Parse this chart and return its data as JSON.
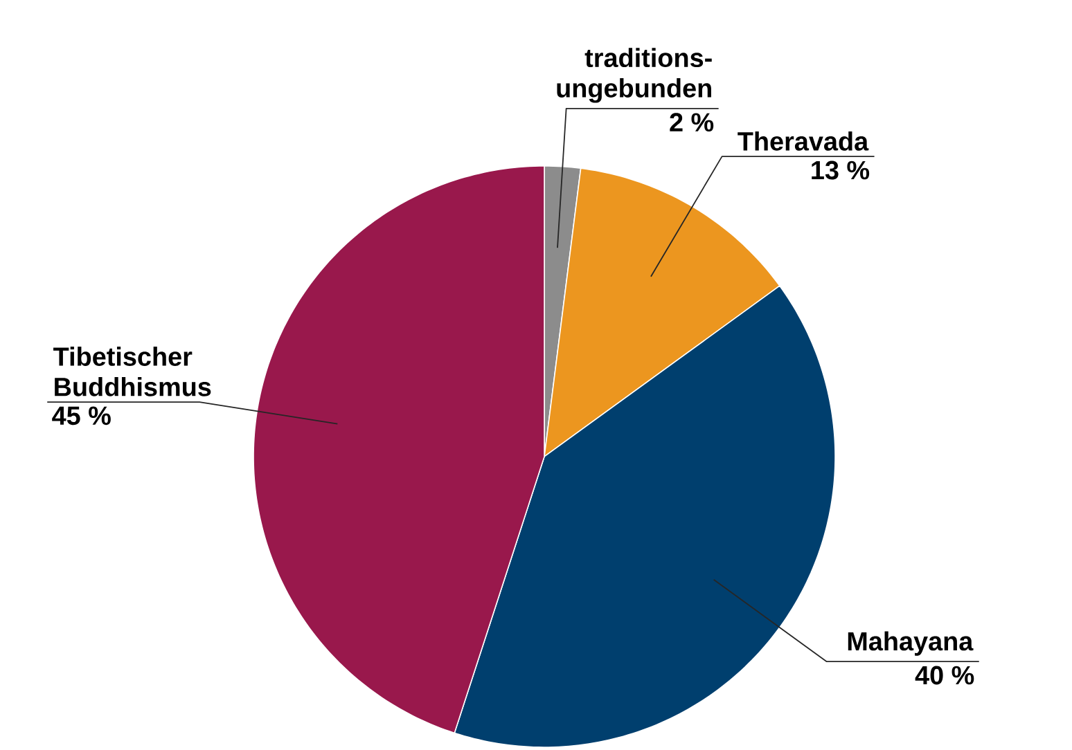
{
  "chart_data": {
    "type": "pie",
    "categories": [
      "traditions-ungebunden",
      "Theravada",
      "Mahayana",
      "Tibetischer Buddhismus"
    ],
    "values": [
      2,
      13,
      40,
      45
    ],
    "value_labels": [
      "2 %",
      "13 %",
      "40 %",
      "45 %"
    ],
    "colors": [
      "#8c8c8c",
      "#ec961f",
      "#003f6e",
      "#99184c"
    ]
  }
}
